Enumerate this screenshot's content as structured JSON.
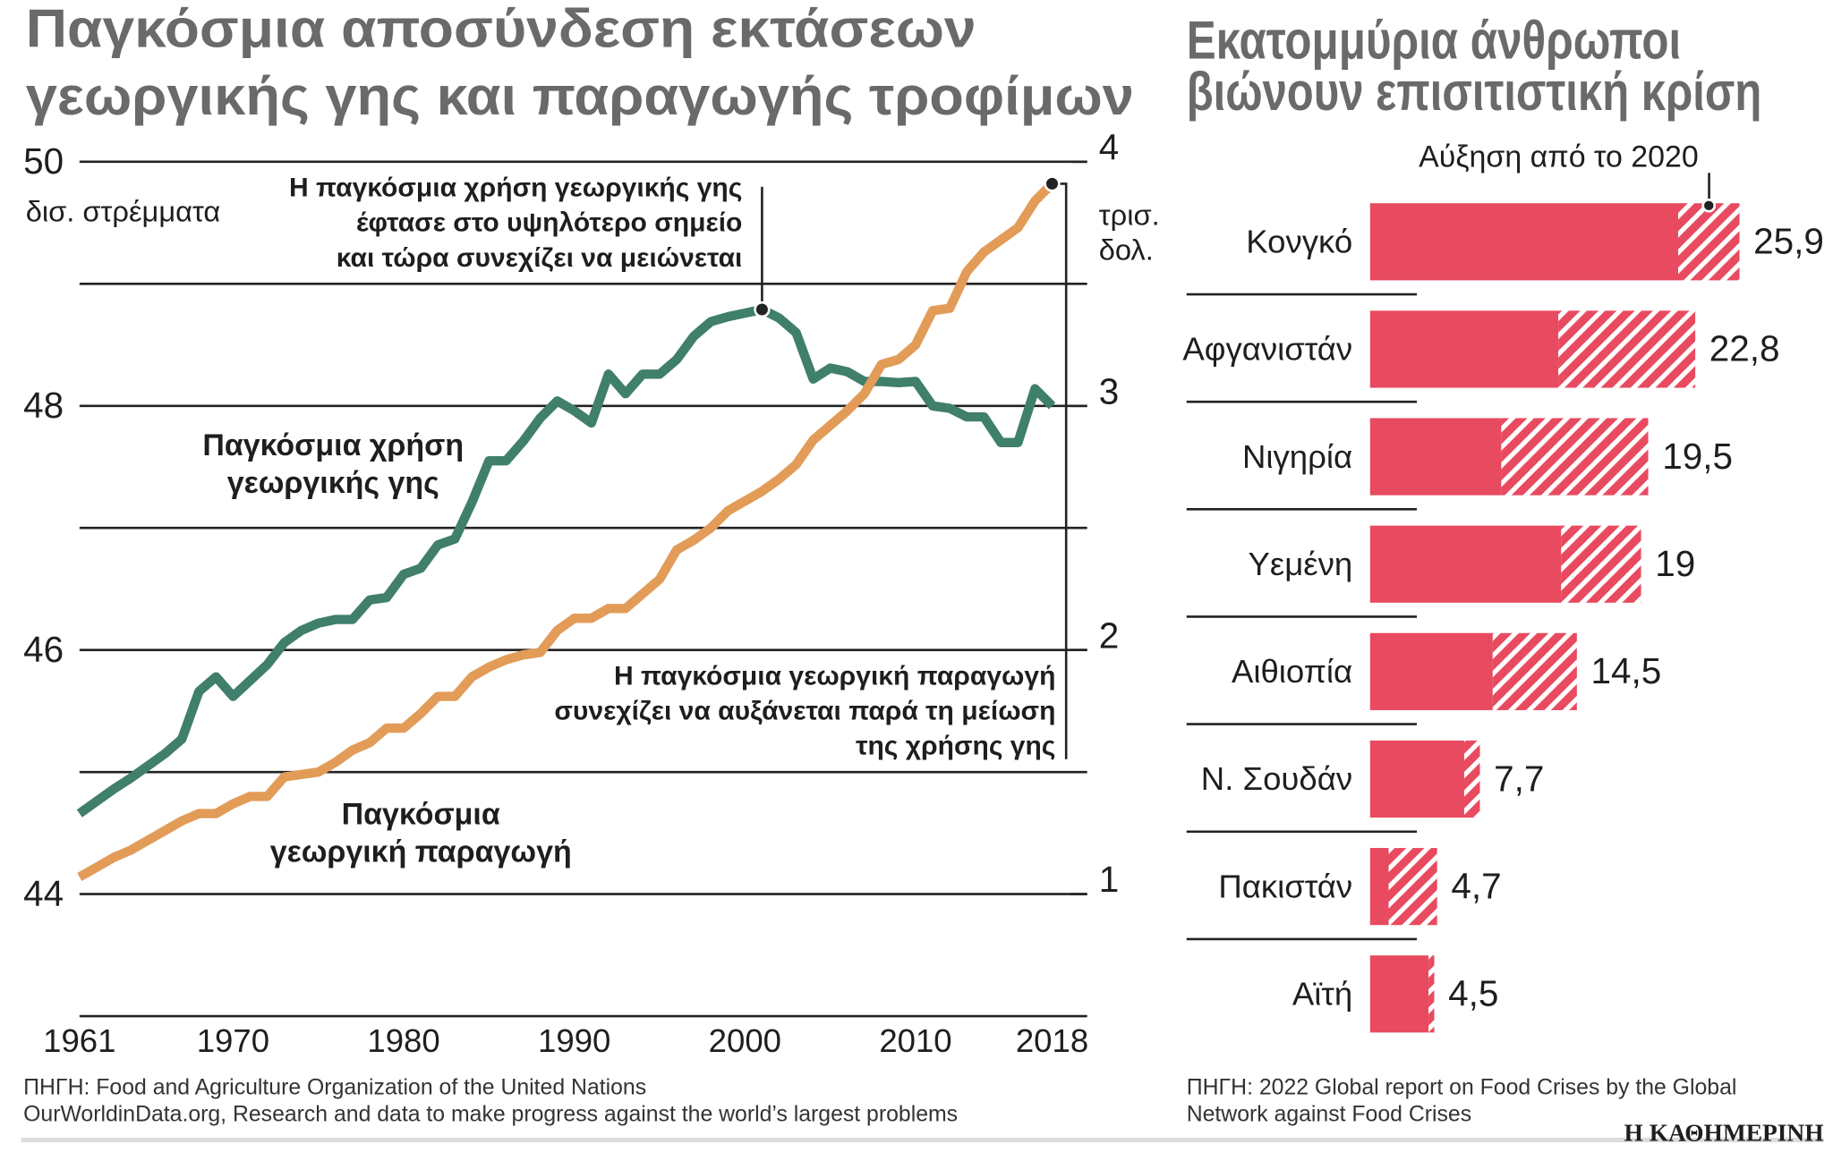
{
  "chart_data": [
    {
      "type": "line",
      "title": [
        "Παγκόσμια αποσύνδεση εκτάσεων",
        "γεωργικής γης και παραγωγής τροφίμων"
      ],
      "x": [
        1961,
        1962,
        1963,
        1964,
        1965,
        1966,
        1967,
        1968,
        1969,
        1970,
        1971,
        1972,
        1973,
        1974,
        1975,
        1976,
        1977,
        1978,
        1979,
        1980,
        1981,
        1982,
        1983,
        1984,
        1985,
        1986,
        1987,
        1988,
        1989,
        1990,
        1991,
        1992,
        1993,
        1994,
        1995,
        1996,
        1997,
        1998,
        1999,
        2000,
        2001,
        2002,
        2003,
        2004,
        2005,
        2006,
        2007,
        2008,
        2009,
        2010,
        2011,
        2012,
        2013,
        2014,
        2015,
        2016,
        2017,
        2018
      ],
      "xlim": [
        1961,
        2018
      ],
      "xticks": [
        1961,
        1970,
        1980,
        1990,
        2000,
        2010,
        2018
      ],
      "ylim": [
        43,
        50
      ],
      "yticks": [
        44,
        46,
        48,
        50
      ],
      "minor_yticks": [
        45,
        47,
        49
      ],
      "ylabel": "δισ. στρέμματα",
      "y2lim": [
        0.5,
        4
      ],
      "y2ticks": [
        1,
        2,
        3,
        4
      ],
      "y2label": [
        "τρισ.",
        "δολ."
      ],
      "grid": true,
      "series": [
        {
          "label": [
            "Παγκόσμια χρήση",
            "γεωργικής γης"
          ],
          "color": "#3f7f6c",
          "axis": "y",
          "values": [
            44.66,
            44.76,
            44.86,
            44.95,
            45.05,
            45.15,
            45.27,
            45.66,
            45.78,
            45.62,
            45.75,
            45.88,
            46.06,
            46.16,
            46.22,
            46.25,
            46.25,
            46.41,
            46.43,
            46.62,
            46.67,
            46.86,
            46.91,
            47.21,
            47.55,
            47.55,
            47.71,
            47.9,
            48.04,
            47.96,
            47.86,
            48.26,
            48.1,
            48.26,
            48.26,
            48.38,
            48.57,
            48.69,
            48.73,
            48.76,
            48.79,
            48.72,
            48.6,
            48.22,
            48.31,
            48.28,
            48.2,
            48.2,
            48.19,
            48.2,
            48.0,
            47.98,
            47.91,
            47.91,
            47.7,
            47.7,
            48.14,
            48.0
          ]
        },
        {
          "label": [
            "Παγκόσμια",
            "γεωργική παραγωγή"
          ],
          "color": "#e29c58",
          "axis": "y2",
          "values": [
            1.07,
            1.11,
            1.15,
            1.18,
            1.22,
            1.26,
            1.3,
            1.33,
            1.33,
            1.37,
            1.4,
            1.4,
            1.48,
            1.49,
            1.5,
            1.54,
            1.59,
            1.62,
            1.68,
            1.68,
            1.74,
            1.81,
            1.81,
            1.89,
            1.93,
            1.96,
            1.98,
            1.99,
            2.08,
            2.13,
            2.13,
            2.17,
            2.17,
            2.23,
            2.29,
            2.41,
            2.45,
            2.5,
            2.57,
            2.61,
            2.65,
            2.7,
            2.76,
            2.86,
            2.92,
            2.98,
            3.05,
            3.17,
            3.19,
            3.25,
            3.39,
            3.4,
            3.55,
            3.63,
            3.68,
            3.73,
            3.84,
            3.91
          ]
        }
      ],
      "annotations": [
        {
          "text": [
            "Η παγκόσμια χρήση γεωργικής γης",
            "έφτασε στο υψηλότερο σημείο",
            "και τώρα συνεχίζει να μειώνεται"
          ],
          "color": "#3f7f6c",
          "series": 0,
          "x": 2001
        },
        {
          "text": [
            "Η παγκόσμια γεωργική παραγωγή",
            "συνεχίζει να αυξάνεται παρά τη μείωση",
            "της χρήσης γης"
          ],
          "color": "#e29c58",
          "series": 1,
          "x": 2018
        }
      ],
      "source": [
        "ΠΗΓΗ: Food and Agriculture Organization of the United Nations",
        "OurWorldinData.org, Research and data to make progress against the world’s largest problems"
      ]
    },
    {
      "type": "stacked_bar_h",
      "title": [
        "Εκατομμύρια άνθρωποι",
        "βιώνουν επισιτιστική κρίση"
      ],
      "categories": [
        "Κονγκό",
        "Αφγανιστάν",
        "Νιγηρία",
        "Υεμένη",
        "Αιθιοπία",
        "Ν. Σουδάν",
        "Πακιστάν",
        "Αϊτή"
      ],
      "series": [
        {
          "color": "#e84a5f",
          "values": [
            21.6,
            13.2,
            9.2,
            13.4,
            8.6,
            6.6,
            1.3,
            4.1
          ]
        },
        {
          "name": "Αύξηση από το 2020",
          "color": "#e84a5f",
          "pattern": "hatch",
          "values": [
            4.3,
            9.6,
            10.3,
            5.6,
            5.9,
            1.1,
            3.4,
            0.4
          ]
        }
      ],
      "totals": [
        25.9,
        22.8,
        19.5,
        19,
        14.5,
        7.7,
        4.7,
        4.5
      ],
      "total_labels": [
        "25,9",
        "22,8",
        "19,5",
        "19",
        "14,5",
        "7,7",
        "4,7",
        "4,5"
      ],
      "source": [
        "ΠΗΓΗ: 2022 Global report on Food Crises by the Global",
        "Network against Food Crises"
      ]
    }
  ],
  "footer": {
    "logo": "Η ΚΑΘΗΜΕΡΙΝΗ"
  }
}
